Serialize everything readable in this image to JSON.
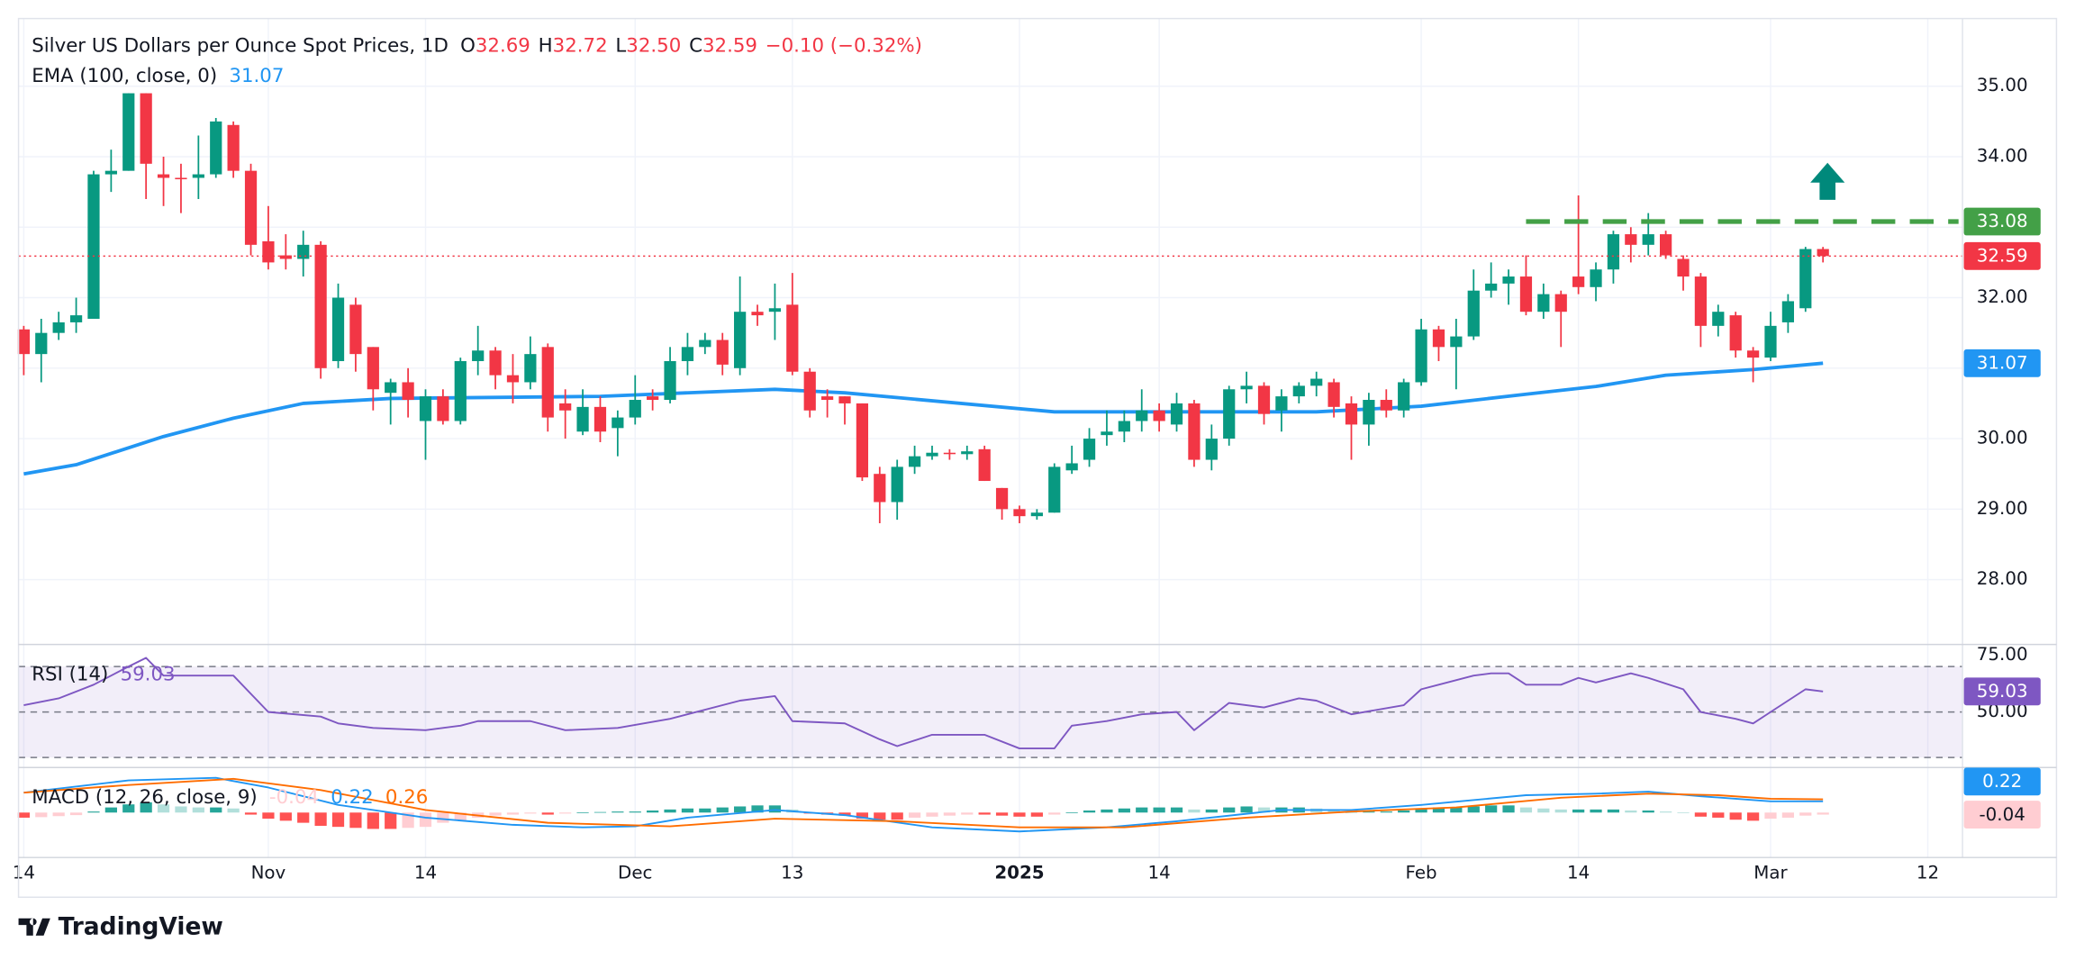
{
  "chart_data": {
    "type": "candlestick",
    "title": "Silver US Dollars per Ounce Spot Prices, 1D",
    "ohlc_legend": [
      {
        "name": "O",
        "value": 32.69,
        "label": "32.69"
      },
      {
        "name": "H",
        "value": 32.72,
        "label": "32.72"
      },
      {
        "name": "L",
        "value": 32.5,
        "label": "32.50"
      },
      {
        "name": "C",
        "value": 32.59,
        "label": "32.59"
      }
    ],
    "change": {
      "value": -0.1,
      "label": "−0.10 (−0.32%)"
    },
    "up_color": "#089981",
    "down_color": "#f23645",
    "open": [
      31.55,
      31.2,
      31.5,
      31.65,
      31.7,
      33.75,
      33.8,
      34.9,
      33.75,
      33.7,
      33.7,
      33.75,
      34.45,
      33.8,
      32.8,
      32.6,
      32.55,
      32.75,
      31.1,
      31.9,
      31.3,
      30.65,
      30.8,
      30.25,
      30.6,
      30.25,
      31.1,
      31.25,
      30.9,
      30.8,
      31.3,
      30.5,
      30.1,
      30.45,
      30.15,
      30.3,
      30.6,
      30.55,
      31.1,
      31.3,
      31.4,
      31.0,
      31.8,
      31.8,
      31.9,
      30.95,
      30.6,
      30.6,
      30.5,
      29.5,
      29.1,
      29.6,
      29.75,
      29.8,
      29.78,
      29.85,
      29.3,
      29.0,
      28.9,
      28.95,
      29.55,
      29.7,
      30.05,
      30.1,
      30.25,
      30.4,
      30.2,
      30.5,
      29.7,
      30.0,
      30.7,
      30.75,
      30.4,
      30.6,
      30.75,
      30.8,
      30.5,
      30.2,
      30.55,
      30.4,
      30.8,
      31.55,
      31.3,
      31.45,
      32.1,
      32.2,
      32.3,
      31.8,
      32.05,
      32.3,
      32.15,
      32.4,
      32.9,
      32.75,
      32.9,
      32.55,
      32.3,
      31.6,
      31.75,
      31.25,
      31.15,
      31.65,
      31.85,
      32.69
    ],
    "high": [
      31.6,
      31.7,
      31.8,
      32.0,
      33.8,
      34.1,
      34.9,
      34.9,
      34.0,
      33.9,
      34.3,
      34.55,
      34.5,
      33.9,
      33.3,
      32.9,
      32.95,
      32.8,
      32.2,
      32.0,
      31.3,
      30.85,
      31.0,
      30.7,
      30.7,
      31.15,
      31.6,
      31.3,
      31.2,
      31.45,
      31.35,
      30.7,
      30.7,
      30.6,
      30.4,
      30.9,
      30.7,
      31.3,
      31.5,
      31.5,
      31.5,
      32.3,
      31.9,
      32.2,
      32.35,
      31.0,
      30.7,
      30.6,
      30.5,
      29.6,
      29.7,
      29.9,
      29.9,
      29.85,
      29.9,
      29.9,
      29.3,
      29.05,
      29.0,
      29.65,
      29.9,
      30.15,
      30.4,
      30.4,
      30.7,
      30.5,
      30.65,
      30.55,
      30.2,
      30.75,
      30.95,
      30.8,
      30.7,
      30.8,
      30.95,
      30.85,
      30.6,
      30.65,
      30.7,
      30.85,
      31.7,
      31.6,
      31.7,
      32.4,
      32.5,
      32.4,
      32.6,
      32.2,
      32.1,
      33.45,
      32.5,
      32.95,
      33.0,
      33.2,
      32.95,
      32.6,
      32.35,
      31.9,
      31.8,
      31.3,
      31.8,
      32.05,
      32.72,
      32.72
    ],
    "low": [
      30.9,
      30.8,
      31.4,
      31.5,
      31.7,
      33.5,
      33.8,
      33.4,
      33.3,
      33.2,
      33.4,
      33.7,
      33.7,
      32.6,
      32.4,
      32.4,
      32.3,
      30.85,
      31.0,
      30.95,
      30.4,
      30.2,
      30.3,
      29.7,
      30.2,
      30.2,
      30.9,
      30.7,
      30.5,
      30.7,
      30.1,
      30.0,
      30.05,
      29.95,
      29.75,
      30.2,
      30.4,
      30.5,
      30.9,
      31.2,
      30.9,
      30.9,
      31.6,
      31.4,
      30.9,
      30.3,
      30.3,
      30.2,
      29.4,
      28.8,
      28.85,
      29.5,
      29.7,
      29.7,
      29.7,
      29.4,
      28.85,
      28.8,
      28.85,
      28.95,
      29.5,
      29.6,
      29.9,
      29.95,
      30.1,
      30.1,
      30.1,
      29.6,
      29.55,
      29.9,
      30.5,
      30.2,
      30.1,
      30.5,
      30.6,
      30.3,
      29.7,
      29.9,
      30.3,
      30.3,
      30.75,
      31.1,
      30.7,
      31.4,
      32.0,
      31.9,
      31.75,
      31.7,
      31.3,
      32.05,
      31.95,
      32.2,
      32.5,
      32.6,
      32.55,
      32.1,
      31.3,
      31.45,
      31.15,
      30.8,
      31.1,
      31.5,
      31.8,
      32.5
    ],
    "close": [
      31.2,
      31.5,
      31.65,
      31.75,
      33.75,
      33.8,
      34.9,
      33.9,
      33.7,
      33.68,
      33.75,
      34.5,
      33.8,
      32.75,
      32.5,
      32.55,
      32.75,
      31.0,
      32.0,
      31.2,
      30.7,
      30.8,
      30.55,
      30.6,
      30.25,
      31.1,
      31.25,
      30.9,
      30.8,
      31.2,
      30.3,
      30.4,
      30.45,
      30.1,
      30.3,
      30.55,
      30.55,
      31.1,
      31.3,
      31.4,
      31.05,
      31.8,
      31.75,
      31.85,
      30.95,
      30.4,
      30.55,
      30.5,
      29.45,
      29.1,
      29.6,
      29.75,
      29.8,
      29.78,
      29.82,
      29.4,
      29.0,
      28.9,
      28.95,
      29.6,
      29.65,
      30.0,
      30.1,
      30.25,
      30.4,
      30.25,
      30.5,
      29.7,
      30.0,
      30.7,
      30.75,
      30.35,
      30.6,
      30.75,
      30.85,
      30.45,
      30.2,
      30.55,
      30.4,
      30.8,
      31.55,
      31.3,
      31.45,
      32.1,
      32.2,
      32.3,
      31.8,
      32.05,
      31.8,
      32.15,
      32.4,
      32.9,
      32.75,
      32.9,
      32.6,
      32.3,
      31.6,
      31.8,
      31.25,
      31.15,
      31.6,
      31.95,
      32.69,
      32.59
    ],
    "xlim": [
      -0.3,
      110.76
    ],
    "xticks": [
      {
        "value": 0,
        "label": "14"
      },
      {
        "value": 14,
        "label": "Nov"
      },
      {
        "value": 23,
        "label": "14"
      },
      {
        "value": 35,
        "label": "Dec"
      },
      {
        "value": 44,
        "label": "13"
      },
      {
        "value": 57,
        "label": "2025"
      },
      {
        "value": 65,
        "label": "14"
      },
      {
        "value": 80,
        "label": "Feb"
      },
      {
        "value": 89,
        "label": "14"
      },
      {
        "value": 100,
        "label": "Mar"
      },
      {
        "value": 109,
        "label": "12"
      }
    ],
    "ylim": [
      27.08,
      35.96
    ],
    "yticks": [
      {
        "value": 28,
        "label": "28.00"
      },
      {
        "value": 29,
        "label": "29.00"
      },
      {
        "value": 30,
        "label": "30.00"
      },
      {
        "value": 31,
        "label": "31.00"
      },
      {
        "value": 32,
        "label": "32.00"
      },
      {
        "value": 33,
        "label": "33.00"
      },
      {
        "value": 34,
        "label": "34.00"
      },
      {
        "value": 35,
        "label": "35.00"
      }
    ],
    "grid": true,
    "ema": {
      "name": "EMA (100, close, 0)",
      "color": "#2196f3",
      "x": [
        0,
        3,
        8,
        12,
        16,
        21,
        33,
        43,
        47,
        59,
        67,
        74,
        80,
        86,
        90,
        94,
        99,
        103
      ],
      "values": [
        29.5,
        29.63,
        30.03,
        30.29,
        30.5,
        30.57,
        30.6,
        30.7,
        30.65,
        30.38,
        30.38,
        30.38,
        30.46,
        30.63,
        30.74,
        30.9,
        30.98,
        31.07
      ]
    },
    "resistance": {
      "value": 33.08,
      "start": 86,
      "color": "#43a047"
    },
    "rsi": {
      "name": "RSI (14)",
      "color": "#7e57c2",
      "ylim": [
        25.6,
        79.7
      ],
      "yticks": [
        {
          "value": 50,
          "label": "50.00"
        },
        {
          "value": 75,
          "label": "75.00"
        }
      ],
      "levels": [
        70,
        50,
        30
      ],
      "x": [
        0,
        2,
        4,
        6,
        7,
        8,
        12,
        14,
        17,
        18,
        20,
        23,
        25,
        26,
        29,
        31,
        34,
        37,
        41,
        43,
        44,
        47,
        49,
        50,
        52,
        55,
        57,
        59,
        60,
        62,
        64,
        66,
        67,
        69,
        71,
        73,
        74,
        76,
        79,
        80,
        83,
        84,
        85,
        86,
        88,
        89,
        90,
        92,
        93,
        95,
        96,
        98,
        99,
        100,
        102,
        103
      ],
      "values": [
        53,
        56,
        62,
        70,
        73.8,
        66,
        66,
        50,
        48,
        45,
        43,
        42,
        44,
        46,
        46,
        42,
        43,
        47,
        55,
        57,
        46,
        45,
        38,
        35,
        40,
        40,
        34,
        34,
        44,
        46,
        49,
        50,
        42,
        54,
        52,
        56,
        55,
        49,
        53,
        60,
        66,
        67,
        67,
        62,
        62,
        65,
        63,
        67,
        65,
        60,
        50,
        47,
        45,
        50,
        60,
        59.03
      ]
    },
    "macd": {
      "name": "MACD (12, 26, close, 9)",
      "ylim": [
        -0.88,
        0.83
      ],
      "histogram": {
        "colors": [
          "#26a69a",
          "#b2dfdb",
          "#ffcdd2",
          "#ff5252"
        ],
        "values": [
          -0.1,
          -0.09,
          -0.07,
          -0.05,
          0.02,
          0.1,
          0.16,
          0.2,
          0.16,
          0.12,
          0.1,
          0.1,
          0.08,
          -0.04,
          -0.12,
          -0.16,
          -0.2,
          -0.26,
          -0.28,
          -0.3,
          -0.32,
          -0.32,
          -0.3,
          -0.28,
          -0.2,
          -0.16,
          -0.1,
          -0.06,
          -0.04,
          -0.02,
          -0.04,
          -0.02,
          0.0,
          0.01,
          0.02,
          0.02,
          0.04,
          0.06,
          0.08,
          0.08,
          0.1,
          0.12,
          0.14,
          0.14,
          0.06,
          -0.02,
          -0.04,
          -0.06,
          -0.12,
          -0.14,
          -0.14,
          -0.1,
          -0.08,
          -0.06,
          -0.04,
          -0.04,
          -0.06,
          -0.08,
          -0.08,
          -0.04,
          0.0,
          0.04,
          0.06,
          0.08,
          0.1,
          0.1,
          0.1,
          0.06,
          0.06,
          0.1,
          0.12,
          0.1,
          0.1,
          0.1,
          0.08,
          0.04,
          0.0,
          0.02,
          0.02,
          0.04,
          0.08,
          0.1,
          0.1,
          0.12,
          0.14,
          0.14,
          0.1,
          0.08,
          0.06,
          0.06,
          0.06,
          0.06,
          0.04,
          0.04,
          0.02,
          0.0,
          -0.08,
          -0.1,
          -0.14,
          -0.16,
          -0.12,
          -0.1,
          -0.06,
          -0.04
        ]
      },
      "macd_line": {
        "color": "#2196f3",
        "x": [
          0,
          6,
          11,
          14,
          18,
          23,
          28,
          32,
          35,
          38,
          43,
          47,
          52,
          57,
          62,
          66,
          72,
          76,
          80,
          86,
          90,
          93,
          96,
          100,
          103
        ],
        "values": [
          0.39,
          0.63,
          0.68,
          0.49,
          0.15,
          -0.1,
          -0.24,
          -0.29,
          -0.27,
          -0.1,
          0.05,
          -0.05,
          -0.29,
          -0.37,
          -0.29,
          -0.17,
          0.05,
          0.05,
          0.15,
          0.34,
          0.37,
          0.41,
          0.32,
          0.22,
          0.22
        ]
      },
      "signal_line": {
        "color": "#ff6d00",
        "x": [
          0,
          6,
          12,
          17,
          23,
          30,
          37,
          43,
          50,
          57,
          63,
          70,
          76,
          82,
          88,
          93,
          97,
          100,
          103
        ],
        "values": [
          0.39,
          0.54,
          0.66,
          0.44,
          0.05,
          -0.2,
          -0.27,
          -0.12,
          -0.17,
          -0.29,
          -0.29,
          -0.1,
          0.02,
          0.1,
          0.29,
          0.37,
          0.34,
          0.27,
          0.26
        ]
      }
    },
    "brand": "TradingView"
  }
}
